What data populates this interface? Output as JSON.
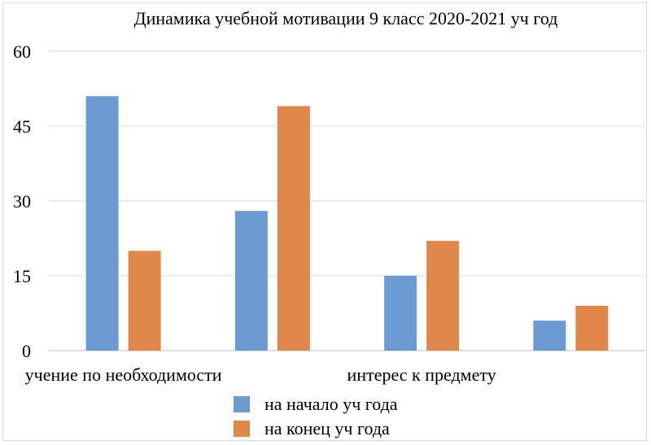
{
  "chart_data": {
    "type": "bar",
    "title": "Динамика учебной мотивации 9 класс 2020-2021 уч год",
    "categories": [
      "учение по необходимости",
      "",
      "интерес к предмету",
      ""
    ],
    "series": [
      {
        "name": "на начало уч года",
        "color": "#6b9bd2",
        "values": [
          51,
          28,
          15,
          6
        ]
      },
      {
        "name": "на конец уч года",
        "color": "#e0874a",
        "values": [
          20,
          49,
          22,
          9
        ]
      }
    ],
    "ylim": [
      0,
      60
    ],
    "yticks": [
      0,
      15,
      30,
      45,
      60
    ],
    "grid": true,
    "legend_position": "bottom"
  }
}
